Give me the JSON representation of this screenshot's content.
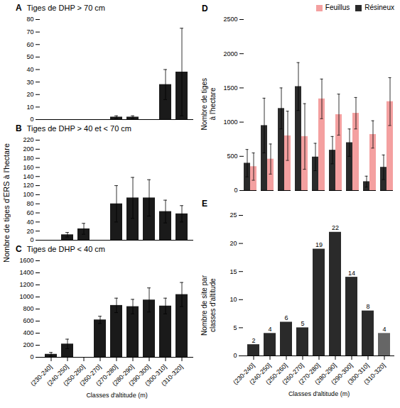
{
  "chart_data": [
    {
      "type": "bar",
      "annotations": [
        "A"
      ],
      "title": "Tiges de DHP > 70 cm",
      "categories": [
        "(230-240]",
        "(240-250]",
        "(250-260]",
        "(260-270]",
        "(270-280]",
        "(280-290]",
        "(290-300]",
        "(300-310]",
        "(310-320]"
      ],
      "values": [
        0,
        0,
        0,
        0,
        2,
        2,
        0,
        28,
        38
      ],
      "errors": [
        0,
        0,
        0,
        0,
        1,
        1,
        0,
        12,
        35
      ],
      "color": "#1a1a1a",
      "ylim": [
        0,
        80
      ],
      "yticks": [
        0,
        10,
        20,
        30,
        40,
        50,
        60,
        70,
        80
      ],
      "tick_labels": "y",
      "grid": false
    },
    {
      "type": "bar",
      "annotations": [
        "B"
      ],
      "title": "Tiges de DHP > 40 et < 70 cm",
      "ylabel": "Nombre de tiges d'ERS à l'hectare",
      "categories": [
        "(230-240]",
        "(240-250]",
        "(250-260]",
        "(260-270]",
        "(270-280]",
        "(280-290]",
        "(290-300]",
        "(300-310]",
        "(310-320]"
      ],
      "values": [
        0,
        12,
        25,
        0,
        80,
        93,
        93,
        63,
        58
      ],
      "errors": [
        0,
        5,
        12,
        0,
        40,
        45,
        40,
        25,
        18
      ],
      "color": "#1a1a1a",
      "ylim": [
        0,
        220
      ],
      "yticks": [
        0,
        20,
        40,
        60,
        80,
        100,
        120,
        140,
        160,
        180,
        200,
        220
      ],
      "tick_labels": "y",
      "grid": false
    },
    {
      "type": "bar",
      "annotations": [
        "C"
      ],
      "title": "Tiges de DHP < 40 cm",
      "xlabel": "Classes d'altitude (m)",
      "categories": [
        "(230-240]",
        "(240-250]",
        "(250-260]",
        "(260-270]",
        "(270-280]",
        "(280-290]",
        "(290-300]",
        "(300-310]",
        "(310-320]"
      ],
      "values": [
        50,
        220,
        0,
        620,
        860,
        840,
        950,
        850,
        1040
      ],
      "errors": [
        30,
        80,
        0,
        60,
        120,
        120,
        200,
        130,
        200
      ],
      "color": "#1a1a1a",
      "ylim": [
        0,
        1600
      ],
      "yticks": [
        0,
        200,
        400,
        600,
        800,
        1000,
        1200,
        1400,
        1600
      ],
      "grid": false
    },
    {
      "type": "bar",
      "annotations": [
        "D"
      ],
      "ylabel": "Nombre de tiges\nà l'hectare",
      "categories": [
        "(230-240]",
        "(240-250]",
        "(250-260]",
        "(260-270]",
        "(270-280]",
        "(280-290]",
        "(290-300]",
        "(300-310]",
        "(310-320]"
      ],
      "series": [
        {
          "name": "Résineux",
          "color": "#2a2a2a",
          "values": [
            400,
            950,
            1200,
            1520,
            490,
            590,
            700,
            130,
            340
          ],
          "errors": [
            200,
            400,
            300,
            350,
            200,
            200,
            200,
            80,
            180
          ]
        },
        {
          "name": "Feuillus",
          "color": "#f4a0a0",
          "values": [
            350,
            460,
            800,
            790,
            1340,
            1110,
            1130,
            820,
            1300
          ],
          "errors": [
            200,
            220,
            360,
            480,
            290,
            300,
            230,
            200,
            350
          ]
        }
      ],
      "ylim": [
        0,
        2500
      ],
      "yticks": [
        0,
        500,
        1000,
        1500,
        2000,
        2500
      ],
      "legend": "upper right",
      "tick_labels": "y",
      "grid": false
    },
    {
      "type": "bar",
      "annotations": [
        "E"
      ],
      "ylabel": "Nombre de site par\nclasses d'altitude",
      "xlabel": "Classes d'altitude (m)",
      "categories": [
        "(230-240]",
        "(240-250]",
        "(250-260]",
        "(260-270]",
        "(270-280]",
        "(280-290]",
        "(290-300]",
        "(300-310]",
        "(310-320]"
      ],
      "values": [
        2,
        4,
        6,
        5,
        19,
        22,
        14,
        8,
        4
      ],
      "colors": [
        "#2a2a2a",
        "#2a2a2a",
        "#2a2a2a",
        "#2a2a2a",
        "#2a2a2a",
        "#2a2a2a",
        "#2a2a2a",
        "#2a2a2a",
        "#666666"
      ],
      "data_labels": true,
      "ylim": [
        0,
        25
      ],
      "yticks": [
        0,
        5,
        10,
        15,
        20,
        25
      ],
      "grid": false
    }
  ]
}
